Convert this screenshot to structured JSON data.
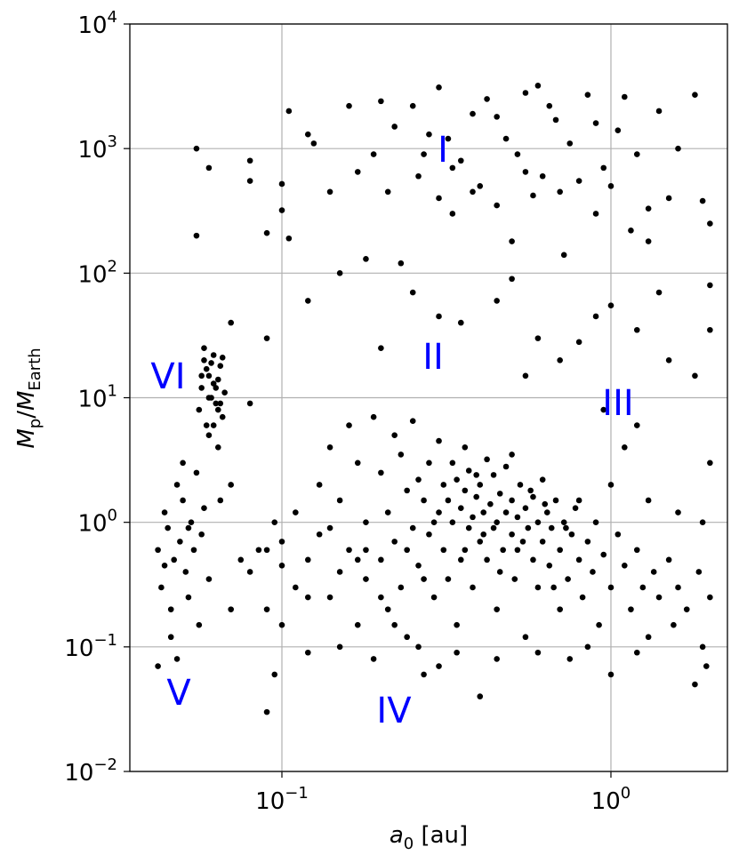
{
  "chart_data": {
    "type": "scatter",
    "xlabel": [
      "a",
      "0",
      " [au]"
    ],
    "ylabel": [
      "M",
      "p",
      "/",
      "M",
      "Earth"
    ],
    "xscale": "log",
    "yscale": "log",
    "grid": true,
    "xlim": [
      0.0345,
      2.26
    ],
    "ylim": [
      0.01,
      10000
    ],
    "xticks": [
      {
        "value": 0.1,
        "label": [
          "10",
          "−1"
        ]
      },
      {
        "value": 1,
        "label": [
          "10",
          "0"
        ]
      }
    ],
    "yticks": [
      {
        "value": 0.01,
        "label": [
          "10",
          "−2"
        ]
      },
      {
        "value": 0.1,
        "label": [
          "10",
          "−1"
        ]
      },
      {
        "value": 1,
        "label": [
          "10",
          "0"
        ]
      },
      {
        "value": 10,
        "label": [
          "10",
          "1"
        ]
      },
      {
        "value": 100,
        "label": [
          "10",
          "2"
        ]
      },
      {
        "value": 1000,
        "label": [
          "10",
          "3"
        ]
      },
      {
        "value": 10000,
        "label": [
          "10",
          "4"
        ]
      }
    ],
    "annotations": [
      "I",
      "II",
      "III",
      "IV",
      "V",
      "VI"
    ],
    "annotation_color": "#0000ff",
    "series": [
      {
        "color": "#000000",
        "x": [
          0.055,
          0.06,
          0.055,
          0.08,
          0.08,
          0.09,
          0.1,
          0.1,
          0.105,
          0.105,
          0.12,
          0.125,
          0.14,
          0.15,
          0.16,
          0.17,
          0.18,
          0.19,
          0.2,
          0.21,
          0.22,
          0.23,
          0.25,
          0.26,
          0.28,
          0.3,
          0.3,
          0.32,
          0.33,
          0.35,
          0.38,
          0.4,
          0.42,
          0.45,
          0.48,
          0.5,
          0.52,
          0.55,
          0.58,
          0.6,
          0.62,
          0.65,
          0.7,
          0.72,
          0.75,
          0.8,
          0.85,
          0.9,
          0.95,
          1.0,
          1.05,
          1.1,
          1.15,
          1.2,
          1.3,
          1.4,
          1.5,
          1.6,
          1.8,
          1.9,
          2.0,
          2.0,
          0.45,
          0.33,
          0.38,
          0.27,
          0.55,
          0.68,
          0.9,
          1.3,
          0.07,
          0.09,
          0.12,
          0.2,
          0.25,
          0.3,
          0.35,
          0.45,
          0.5,
          0.6,
          0.8,
          0.9,
          1.0,
          1.2,
          1.5,
          1.8,
          2.0,
          0.7,
          0.55,
          1.4,
          0.056,
          0.057,
          0.058,
          0.059,
          0.06,
          0.061,
          0.062,
          0.063,
          0.064,
          0.065,
          0.066,
          0.067,
          0.058,
          0.06,
          0.062,
          0.064,
          0.059,
          0.061,
          0.063,
          0.065,
          0.057,
          0.066,
          0.06,
          0.062,
          0.064,
          0.042,
          0.043,
          0.044,
          0.045,
          0.046,
          0.047,
          0.048,
          0.049,
          0.05,
          0.051,
          0.052,
          0.053,
          0.054,
          0.055,
          0.056,
          0.057,
          0.058,
          0.06,
          0.042,
          0.048,
          0.046,
          0.05,
          0.044,
          0.052,
          0.08,
          0.085,
          0.09,
          0.095,
          0.1,
          0.1,
          0.11,
          0.11,
          0.12,
          0.12,
          0.13,
          0.13,
          0.14,
          0.14,
          0.15,
          0.15,
          0.16,
          0.16,
          0.17,
          0.17,
          0.18,
          0.18,
          0.19,
          0.19,
          0.2,
          0.2,
          0.21,
          0.21,
          0.22,
          0.22,
          0.23,
          0.23,
          0.24,
          0.24,
          0.25,
          0.25,
          0.26,
          0.26,
          0.27,
          0.27,
          0.28,
          0.28,
          0.29,
          0.3,
          0.3,
          0.31,
          0.31,
          0.32,
          0.32,
          0.33,
          0.33,
          0.34,
          0.34,
          0.35,
          0.35,
          0.36,
          0.36,
          0.37,
          0.37,
          0.38,
          0.38,
          0.39,
          0.4,
          0.4,
          0.4,
          0.41,
          0.42,
          0.42,
          0.43,
          0.44,
          0.44,
          0.45,
          0.45,
          0.46,
          0.47,
          0.48,
          0.48,
          0.5,
          0.5,
          0.51,
          0.52,
          0.53,
          0.54,
          0.55,
          0.55,
          0.56,
          0.58,
          0.58,
          0.6,
          0.6,
          0.62,
          0.62,
          0.64,
          0.65,
          0.66,
          0.68,
          0.7,
          0.7,
          0.72,
          0.74,
          0.75,
          0.76,
          0.78,
          0.8,
          0.82,
          0.85,
          0.88,
          0.9,
          0.92,
          0.95,
          1.0,
          1.0,
          1.05,
          1.1,
          1.15,
          1.2,
          1.25,
          1.3,
          1.35,
          1.4,
          1.5,
          1.55,
          1.6,
          1.7,
          1.8,
          1.85,
          1.9,
          1.95,
          2.0,
          0.52,
          0.46,
          0.57,
          0.63,
          0.67,
          0.73,
          0.41,
          0.39,
          0.36,
          0.29,
          0.27,
          0.24,
          0.2,
          0.17,
          0.14,
          0.12,
          0.1,
          0.09,
          0.15,
          0.18,
          0.22,
          0.26,
          0.3,
          0.34,
          0.45,
          0.6,
          0.85,
          1.2,
          0.09,
          0.095,
          0.5,
          0.8,
          1.0,
          1.1,
          1.3,
          1.6,
          1.9,
          2.0,
          1.2,
          0.95,
          0.07,
          0.075,
          0.08,
          0.07,
          0.065
        ],
        "values": [
          1000,
          700,
          200,
          800,
          550,
          210,
          320,
          520,
          190,
          2000,
          1300,
          1100,
          450,
          100,
          2200,
          650,
          130,
          900,
          2400,
          450,
          1500,
          120,
          2200,
          600,
          1300,
          3100,
          400,
          1200,
          300,
          800,
          1900,
          500,
          2500,
          350,
          1200,
          180,
          900,
          2800,
          420,
          3200,
          600,
          2200,
          450,
          140,
          1100,
          550,
          2700,
          300,
          700,
          500,
          1400,
          2600,
          220,
          900,
          330,
          2000,
          400,
          1000,
          2700,
          380,
          250,
          80,
          1800,
          700,
          450,
          900,
          650,
          1700,
          1600,
          180,
          40,
          30,
          60,
          25,
          70,
          45,
          40,
          60,
          90,
          30,
          28,
          45,
          55,
          35,
          20,
          15,
          35,
          20,
          15,
          70,
          8,
          12,
          20,
          6,
          15,
          10,
          22,
          9,
          14,
          18,
          7,
          11,
          25,
          5,
          13,
          8,
          17,
          19,
          12,
          9,
          15,
          21,
          10,
          6,
          4,
          0.6,
          0.3,
          1.2,
          0.9,
          0.2,
          0.5,
          2.0,
          0.7,
          1.5,
          0.4,
          0.25,
          1.0,
          0.6,
          2.5,
          0.15,
          0.8,
          1.3,
          0.35,
          0.07,
          0.08,
          0.12,
          3,
          0.45,
          0.9,
          0.4,
          0.6,
          0.2,
          1.0,
          0.15,
          0.7,
          0.3,
          1.2,
          0.5,
          0.09,
          2.0,
          0.8,
          0.25,
          4.0,
          1.5,
          0.4,
          6.0,
          0.6,
          0.15,
          3.0,
          1.0,
          0.35,
          7.0,
          0.08,
          0.5,
          2.5,
          1.2,
          0.2,
          5.0,
          0.7,
          0.3,
          3.5,
          1.8,
          0.12,
          0.9,
          6.5,
          2.2,
          0.45,
          1.5,
          0.06,
          3.0,
          0.8,
          0.25,
          1.2,
          4.5,
          2.0,
          0.6,
          1.5,
          0.35,
          3.0,
          1.0,
          2.2,
          0.15,
          1.3,
          0.5,
          1.8,
          4.0,
          0.9,
          2.6,
          1.1,
          0.3,
          1.6,
          0.04,
          2.0,
          0.7,
          1.2,
          3.2,
          0.5,
          1.4,
          0.9,
          2.4,
          1.0,
          0.2,
          1.7,
          0.6,
          1.2,
          2.8,
          0.8,
          1.5,
          0.35,
          1.1,
          2.0,
          0.7,
          1.3,
          0.12,
          0.9,
          1.6,
          0.5,
          1.0,
          0.3,
          2.2,
          0.7,
          1.2,
          0.45,
          0.9,
          1.5,
          0.6,
          0.2,
          1.0,
          0.35,
          0.08,
          0.8,
          1.3,
          0.5,
          0.25,
          0.7,
          0.4,
          1.0,
          0.15,
          0.55,
          0.06,
          0.3,
          0.8,
          0.45,
          0.2,
          0.6,
          0.3,
          0.12,
          0.4,
          0.25,
          0.5,
          0.15,
          0.3,
          0.2,
          0.05,
          0.4,
          0.1,
          0.07,
          0.25,
          0.6,
          0.4,
          1.8,
          1.4,
          0.3,
          0.9,
          0.8,
          2.4,
          0.6,
          1.0,
          0.35,
          0.6,
          0.25,
          0.5,
          0.9,
          0.25,
          0.45,
          0.6,
          0.1,
          0.6,
          0.15,
          0.1,
          0.07,
          0.09,
          0.08,
          0.09,
          0.1,
          0.09,
          0.03,
          0.06,
          3.5,
          1.5,
          2.0,
          4.0,
          1.5,
          1.2,
          1.0,
          3.0,
          6.0,
          8.0,
          2.0,
          0.5,
          9.0,
          0.2,
          1.5
        ]
      }
    ]
  }
}
